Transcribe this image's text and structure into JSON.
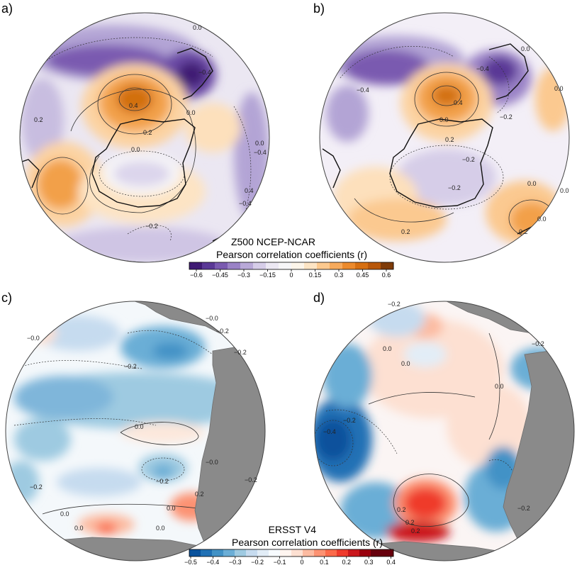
{
  "panels": {
    "a": {
      "label": "a)"
    },
    "b": {
      "label": "b)"
    },
    "c": {
      "label": "c)"
    },
    "d": {
      "label": "d)"
    }
  },
  "colorbar_top": {
    "title_line1": "Z500 NCEP-NCAR",
    "title_line2": "Pearson correlation coefficients (r)",
    "ticks": [
      "−0.6",
      "−0.45",
      "−0.3",
      "−0.15",
      "0",
      "0.15",
      "0.3",
      "0.45",
      "0.6"
    ],
    "colors": [
      "#3f1a73",
      "#5a3896",
      "#7a5ab0",
      "#9a82c6",
      "#b9a9d8",
      "#d6cde8",
      "#ece8f3",
      "#f7f6f8",
      "#fdf5ea",
      "#fde4c4",
      "#fcc98f",
      "#f7aa5c",
      "#ec8a2c",
      "#d66f11",
      "#b8570a",
      "#7f3b08"
    ]
  },
  "colorbar_bottom": {
    "title_line1": "ERSST V4",
    "title_line2": "Pearson correlation coefficients (r)",
    "ticks": [
      "−0.5",
      "−0.4",
      "−0.3",
      "−0.2",
      "−0.1",
      "0",
      "0.1",
      "0.2",
      "0.3",
      "0.4"
    ],
    "colors": [
      "#08519c",
      "#2171b5",
      "#4292c6",
      "#6baed6",
      "#9ecae1",
      "#c6dbef",
      "#e2edf7",
      "#f7fbff",
      "#fff5f0",
      "#fde0d2",
      "#fcbba1",
      "#fc9272",
      "#fb6a4a",
      "#ef3b2c",
      "#cb181d",
      "#99000d",
      "#67000d",
      "#67000d"
    ]
  },
  "contour_labels": {
    "a": [
      "0.0",
      "0.4",
      "−0.4",
      "0.2",
      "0.0",
      "0.0",
      "0.2",
      "0.0",
      "0.4",
      "−0.2",
      "−0.4",
      "−0.4"
    ],
    "b": [
      "−0.4",
      "0.0",
      "−0.4",
      "0.4",
      "0.0",
      "−0.2",
      "0.2",
      "0.0",
      "−0.2",
      "0.0",
      "−0.2",
      "0.2",
      "0.0",
      "0.0",
      "0.2"
    ],
    "c": [
      "−0.0",
      "−0.2",
      "−0.2",
      "−0.2",
      "0.0",
      "−0.2",
      "−0.0",
      "−0.2",
      "−0.0",
      "0.0",
      "0.0",
      "0.0",
      "0.0",
      "0.2",
      "−0.2"
    ],
    "d": [
      "−0.2",
      "0.0",
      "0.0",
      "0.0",
      "−0.4",
      "−0.2",
      "0.2",
      "0.2",
      "0.2",
      "−0.2",
      "−0.2"
    ]
  }
}
